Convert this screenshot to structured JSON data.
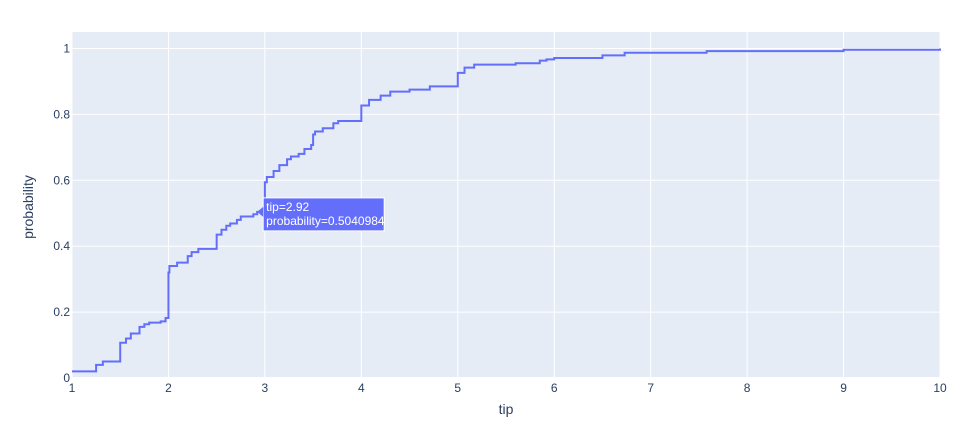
{
  "chart_data": {
    "type": "line",
    "line_shape": "step",
    "title": "",
    "xlabel": "tip",
    "ylabel": "probability",
    "xlim": [
      1,
      10
    ],
    "ylim": [
      0,
      1.05
    ],
    "x_ticks": [
      1,
      2,
      3,
      4,
      5,
      6,
      7,
      8,
      9,
      10
    ],
    "x_tick_labels": [
      "1",
      "2",
      "3",
      "4",
      "5",
      "6",
      "7",
      "8",
      "9",
      "10"
    ],
    "y_ticks": [
      0,
      0.2,
      0.4,
      0.6,
      0.8,
      1
    ],
    "y_tick_labels": [
      "0",
      "0.2",
      "0.4",
      "0.6",
      "0.8",
      "1"
    ],
    "grid": true,
    "colors": {
      "line": "#636efa",
      "plot_bg": "#e5ecf6",
      "grid": "#ffffff",
      "tooltip_bg": "#636efa",
      "tooltip_text": "#ffffff",
      "axis_text": "#2a3f5f"
    },
    "series": [
      {
        "x": [
          1.0,
          1.25,
          1.32,
          1.5,
          1.56,
          1.61,
          1.7,
          1.75,
          1.8,
          1.92,
          1.97,
          2.0,
          2.01,
          2.09,
          2.2,
          2.24,
          2.31,
          2.5,
          2.55,
          2.6,
          2.64,
          2.71,
          2.75,
          2.88,
          2.92,
          3.0,
          3.02,
          3.09,
          3.15,
          3.23,
          3.27,
          3.35,
          3.41,
          3.48,
          3.5,
          3.52,
          3.6,
          3.71,
          3.76,
          4.0,
          4.08,
          4.2,
          4.3,
          4.5,
          4.71,
          5.0,
          5.07,
          5.17,
          5.6,
          5.85,
          5.92,
          6.0,
          6.5,
          6.73,
          7.58,
          9.0,
          10.0
        ],
        "y": [
          0.02,
          0.04,
          0.05,
          0.107,
          0.12,
          0.135,
          0.155,
          0.163,
          0.168,
          0.172,
          0.182,
          0.32,
          0.34,
          0.35,
          0.37,
          0.382,
          0.392,
          0.435,
          0.45,
          0.462,
          0.469,
          0.48,
          0.49,
          0.497,
          0.5040984,
          0.594,
          0.61,
          0.628,
          0.646,
          0.664,
          0.672,
          0.68,
          0.695,
          0.707,
          0.739,
          0.748,
          0.758,
          0.773,
          0.78,
          0.827,
          0.844,
          0.857,
          0.869,
          0.875,
          0.885,
          0.926,
          0.942,
          0.951,
          0.955,
          0.963,
          0.967,
          0.971,
          0.979,
          0.987,
          0.992,
          0.996,
          1.0
        ]
      }
    ],
    "hover": {
      "x_label": "tip=2.92",
      "y_label": "probability=0.5040984",
      "x": 2.92,
      "y": 0.5040984
    }
  }
}
